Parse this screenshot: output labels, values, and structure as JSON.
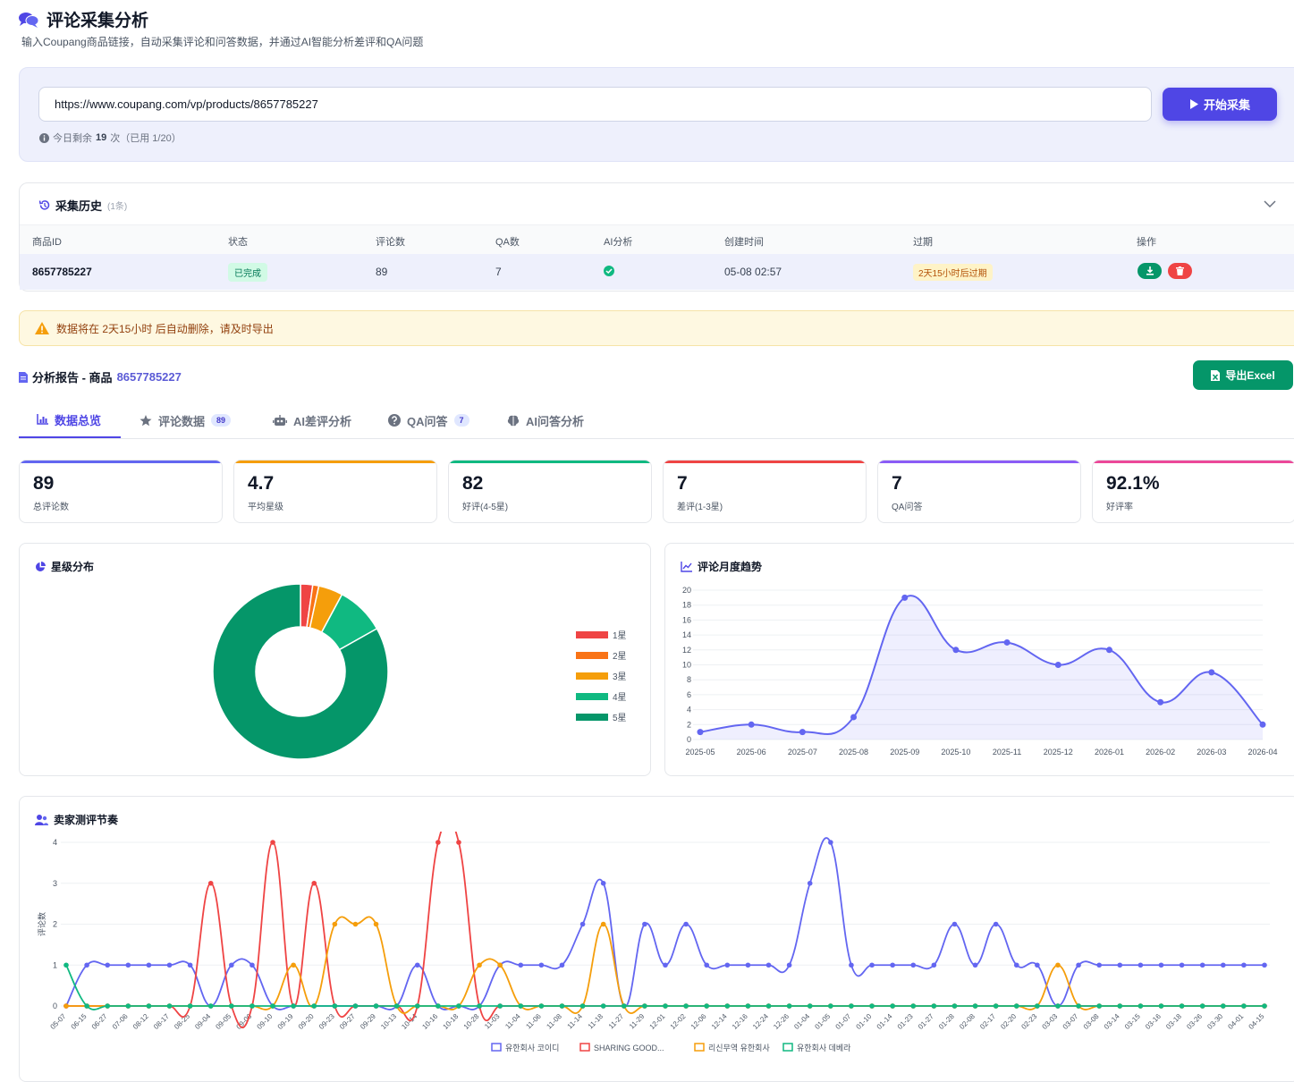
{
  "header": {
    "title": "评论采集分析",
    "subtitle": "输入Coupang商品链接，自动采集评论和问答数据，并通过AI智能分析差评和QA问题"
  },
  "collect": {
    "url": "https://www.coupang.com/vp/products/8657785227",
    "start_label": "开始采集",
    "quota_prefix": "今日剩余",
    "quota_value": "19",
    "quota_suffix": "次（已用 1/20）"
  },
  "history": {
    "title": "采集历史",
    "count": "(1条)",
    "columns": [
      "商品ID",
      "状态",
      "评论数",
      "QA数",
      "AI分析",
      "创建时间",
      "过期",
      "操作"
    ],
    "row": {
      "product_id": "8657785227",
      "status": "已完成",
      "reviews": "89",
      "qa": "7",
      "created": "05-08 02:57",
      "expire": "2天15小时后过期"
    }
  },
  "warning": "数据将在 2天15小时 后自动删除，请及时导出",
  "report": {
    "title_prefix": "分析报告 - 商品",
    "product_id": "8657785227",
    "export_label": "导出Excel"
  },
  "tabs": [
    {
      "label": "数据总览",
      "icon": "bar-chart-icon"
    },
    {
      "label": "评论数据",
      "count": "89",
      "icon": "star-icon"
    },
    {
      "label": "AI差评分析",
      "icon": "robot-icon"
    },
    {
      "label": "QA问答",
      "count": "7",
      "icon": "question-icon"
    },
    {
      "label": "AI问答分析",
      "icon": "brain-icon"
    }
  ],
  "stats": [
    {
      "value": "89",
      "label": "总评论数",
      "color": "#6366f1"
    },
    {
      "value": "4.7",
      "label": "平均星级",
      "color": "#f59e0b"
    },
    {
      "value": "82",
      "label": "好评(4-5星)",
      "color": "#10b981"
    },
    {
      "value": "7",
      "label": "差评(1-3星)",
      "color": "#ef4444"
    },
    {
      "value": "7",
      "label": "QA问答",
      "color": "#8b5cf6"
    },
    {
      "value": "92.1%",
      "label": "好评率",
      "color": "#ec4899"
    }
  ],
  "charts_titles": {
    "star": "星级分布",
    "trend": "评论月度趋势",
    "seller": "卖家测评节奏"
  },
  "chart_data": [
    {
      "type": "pie",
      "title": "星级分布",
      "categories": [
        "1星",
        "2星",
        "3星",
        "4星",
        "5星"
      ],
      "values": [
        2,
        1,
        4,
        8,
        74
      ],
      "colors": [
        "#ef4444",
        "#f97316",
        "#f59e0b",
        "#10b981",
        "#059669"
      ],
      "legend": "right"
    },
    {
      "type": "area",
      "title": "评论月度趋势",
      "x": [
        "2025-05",
        "2025-06",
        "2025-07",
        "2025-08",
        "2025-09",
        "2025-10",
        "2025-11",
        "2025-12",
        "2026-01",
        "2026-02",
        "2026-03",
        "2026-04"
      ],
      "values": [
        1,
        2,
        1,
        3,
        19,
        12,
        13,
        10,
        12,
        5,
        9,
        2
      ],
      "ylim": [
        0,
        20
      ],
      "yticks": [
        0,
        2,
        4,
        6,
        8,
        10,
        12,
        14,
        16,
        18,
        20
      ],
      "color": "#6366f1",
      "grid": true
    },
    {
      "type": "line",
      "title": "卖家测评节奏",
      "ylabel": "评论数",
      "ylim": [
        0,
        4
      ],
      "yticks": [
        0,
        1,
        2,
        3,
        4
      ],
      "x": [
        "05-07",
        "06-15",
        "06-27",
        "07-06",
        "08-12",
        "08-17",
        "08-25",
        "09-04",
        "09-05",
        "09-06",
        "09-10",
        "09-19",
        "09-20",
        "09-23",
        "09-27",
        "09-29",
        "10-13",
        "10-14",
        "10-16",
        "10-18",
        "10-28",
        "11-03",
        "11-04",
        "11-06",
        "11-08",
        "11-14",
        "11-18",
        "11-27",
        "11-29",
        "12-01",
        "12-02",
        "12-06",
        "12-14",
        "12-16",
        "12-24",
        "12-26",
        "01-04",
        "01-05",
        "01-07",
        "01-10",
        "01-14",
        "01-23",
        "01-27",
        "01-28",
        "02-08",
        "02-17",
        "02-20",
        "02-23",
        "03-03",
        "03-07",
        "03-08",
        "03-14",
        "03-15",
        "03-16",
        "03-18",
        "03-26",
        "03-30",
        "04-01",
        "04-15"
      ],
      "series": [
        {
          "name": "유한회사 코이디",
          "color": "#6366f1",
          "values": [
            0,
            1,
            1,
            1,
            1,
            1,
            1,
            0,
            1,
            1,
            0,
            0,
            0,
            0,
            0,
            0,
            0,
            1,
            0,
            0,
            0,
            1,
            1,
            1,
            1,
            2,
            3,
            0,
            2,
            1,
            2,
            1,
            1,
            1,
            1,
            1,
            3,
            4,
            1,
            1,
            1,
            1,
            1,
            2,
            1,
            2,
            1,
            1,
            0,
            1,
            1,
            1,
            1,
            1,
            1,
            1,
            1,
            1,
            1
          ]
        },
        {
          "name": "SHARING GOOD...",
          "color": "#ef4444",
          "values": [
            0,
            0,
            0,
            0,
            0,
            0,
            0,
            3,
            0,
            0,
            4,
            0,
            3,
            0,
            0,
            0,
            0,
            0,
            4,
            4,
            0,
            0,
            0,
            0,
            0,
            0,
            0,
            0,
            0,
            0,
            0,
            0,
            0,
            0,
            0,
            0,
            0,
            0,
            0,
            0,
            0,
            0,
            0,
            0,
            0,
            0,
            0,
            0,
            0,
            0,
            0,
            0,
            0,
            0,
            0,
            0,
            0,
            0,
            0
          ]
        },
        {
          "name": "리신무역 유한회사",
          "color": "#f59e0b",
          "values": [
            0,
            0,
            0,
            0,
            0,
            0,
            0,
            0,
            0,
            0,
            0,
            1,
            0,
            2,
            2,
            2,
            0,
            0,
            0,
            0,
            1,
            1,
            0,
            0,
            0,
            0,
            2,
            0,
            0,
            0,
            0,
            0,
            0,
            0,
            0,
            0,
            0,
            0,
            0,
            0,
            0,
            0,
            0,
            0,
            0,
            0,
            0,
            0,
            1,
            0,
            0,
            0,
            0,
            0,
            0,
            0,
            0,
            0,
            0
          ]
        },
        {
          "name": "유한회사 데베라",
          "color": "#10b981",
          "values": [
            1,
            0,
            0,
            0,
            0,
            0,
            0,
            0,
            0,
            0,
            0,
            0,
            0,
            0,
            0,
            0,
            0,
            0,
            0,
            0,
            0,
            0,
            0,
            0,
            0,
            0,
            0,
            0,
            0,
            0,
            0,
            0,
            0,
            0,
            0,
            0,
            0,
            0,
            0,
            0,
            0,
            0,
            0,
            0,
            0,
            0,
            0,
            0,
            0,
            0,
            0,
            0,
            0,
            0,
            0,
            0,
            0,
            0,
            0
          ]
        }
      ],
      "legend": "bottom",
      "grid": true
    }
  ]
}
